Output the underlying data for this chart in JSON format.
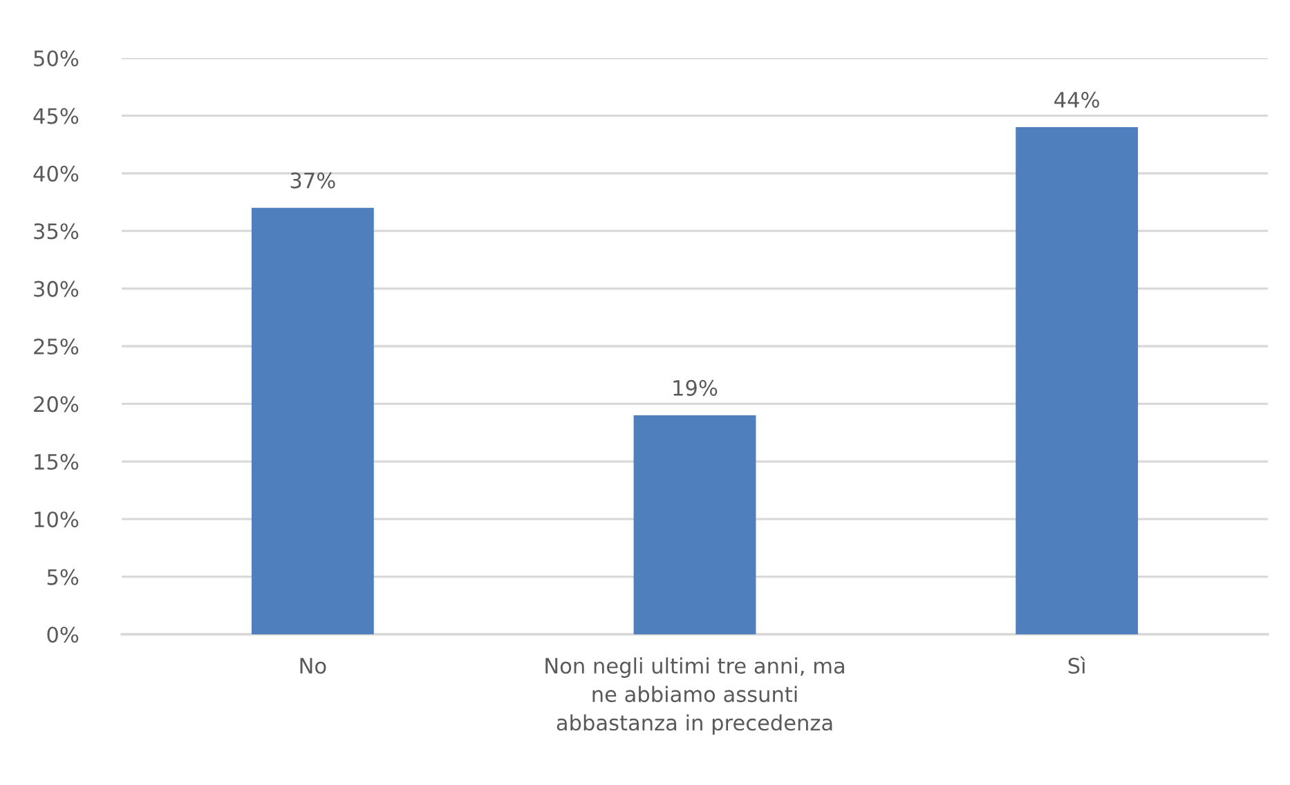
{
  "chart_data": {
    "type": "bar",
    "categories": [
      "No",
      "Non negli ultimi tre anni, ma\nne abbiamo assunti\nabbastanza in precedenza",
      "Sì"
    ],
    "values": [
      37,
      19,
      44
    ],
    "color": "#4f7fbc",
    "value_labels": [
      "37%",
      "19%",
      "44%"
    ],
    "ylim": [
      0,
      50
    ],
    "yticks": [
      {
        "value": 0,
        "label": "0%"
      },
      {
        "value": 5,
        "label": "5%"
      },
      {
        "value": 10,
        "label": "10%"
      },
      {
        "value": 15,
        "label": "15%"
      },
      {
        "value": 20,
        "label": "20%"
      },
      {
        "value": 25,
        "label": "25%"
      },
      {
        "value": 30,
        "label": "30%"
      },
      {
        "value": 35,
        "label": "35%"
      },
      {
        "value": 40,
        "label": "40%"
      },
      {
        "value": 45,
        "label": "45%"
      },
      {
        "value": 50,
        "label": "50%"
      }
    ],
    "grid": "y",
    "legend": false
  }
}
